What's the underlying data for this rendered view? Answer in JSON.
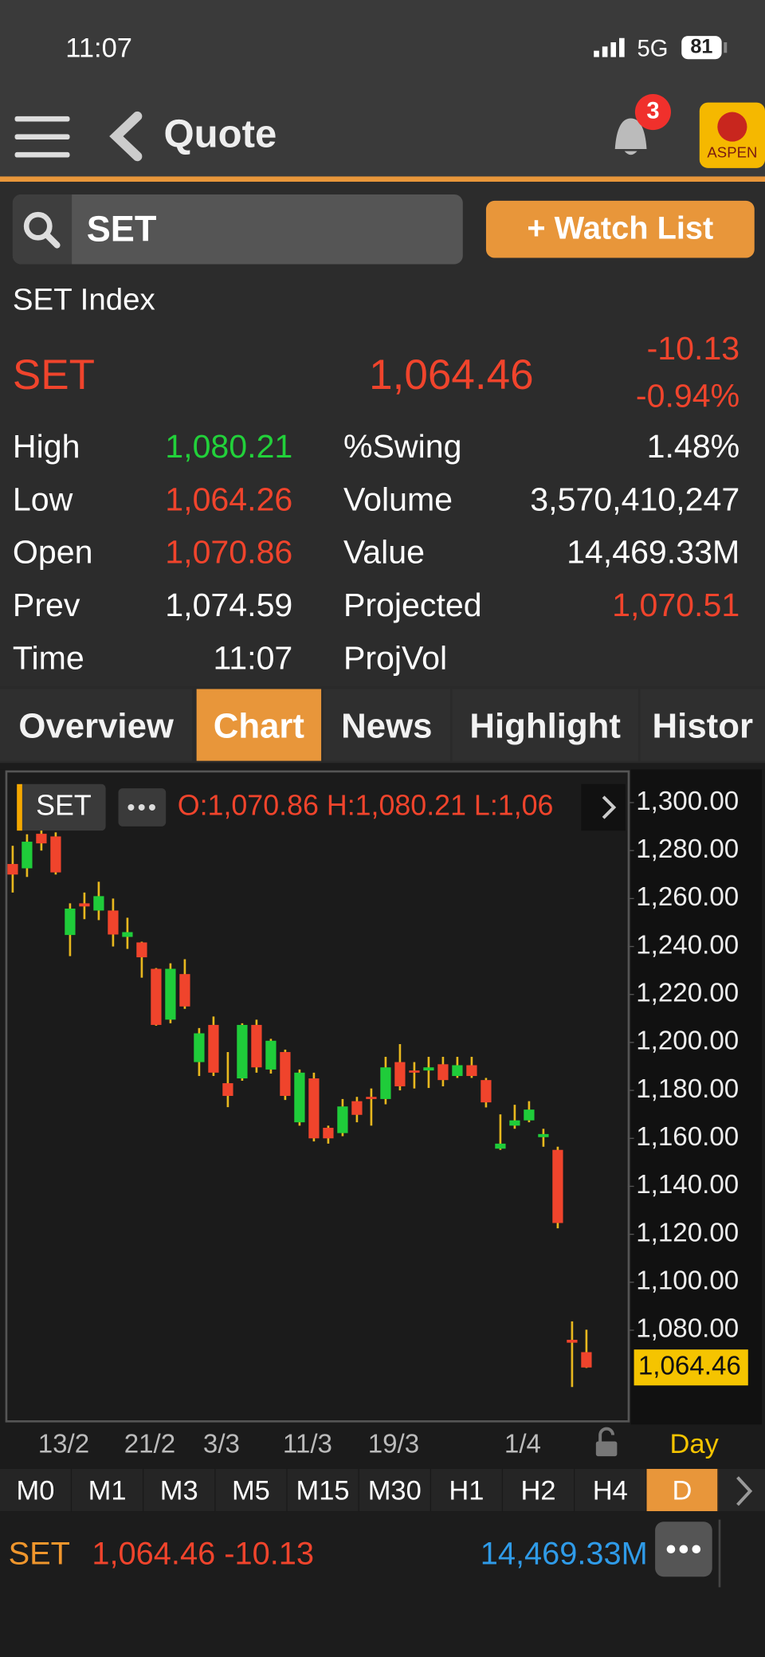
{
  "status_bar": {
    "time": "11:07",
    "network": "5G",
    "battery": "81"
  },
  "header": {
    "title": "Quote",
    "notifications": "3",
    "logo": "ASPEN"
  },
  "search": {
    "query": "SET",
    "watch_list_button": "+ Watch List"
  },
  "quote": {
    "name": "SET Index",
    "symbol": "SET",
    "last": "1,064.46",
    "change": "-10.13",
    "change_pct": "-0.94%",
    "left_stats": [
      {
        "label": "High",
        "value": "1,080.21",
        "color": "#22d13a"
      },
      {
        "label": "Low",
        "value": "1,064.26",
        "color": "#f0442c"
      },
      {
        "label": "Open",
        "value": "1,070.86",
        "color": "#f0442c"
      },
      {
        "label": "Prev",
        "value": "1,074.59",
        "color": "#ffffff"
      },
      {
        "label": "Time",
        "value": "11:07",
        "color": "#ffffff"
      }
    ],
    "right_stats": [
      {
        "label": "%Swing",
        "value": "1.48%",
        "color": "#ffffff"
      },
      {
        "label": "Volume",
        "value": "3,570,410,247",
        "color": "#ffffff"
      },
      {
        "label": "Value",
        "value": "14,469.33M",
        "color": "#ffffff"
      },
      {
        "label": "Projected",
        "value": "1,070.51",
        "color": "#f0442c"
      },
      {
        "label": "ProjVol"
      }
    ]
  },
  "tabs": [
    "Overview",
    "Chart",
    "News",
    "Highlight",
    "Histor"
  ],
  "chart_data": {
    "type": "candlestick",
    "symbol": "SET",
    "ohlc_summary": "O:1,070.86  H:1,080.21  L:1,06",
    "interval": "Day",
    "up_color": "#1fcc3a",
    "down_color": "#f0442c",
    "wick_color": "#e8b81e",
    "categories": [
      null,
      null,
      null,
      null,
      "13/2",
      null,
      null,
      null,
      null,
      null,
      "21/2",
      null,
      null,
      null,
      null,
      "3/3",
      null,
      null,
      null,
      null,
      null,
      "11/3",
      null,
      null,
      null,
      null,
      null,
      "19/3",
      null,
      null,
      null,
      null,
      null,
      null,
      null,
      null,
      "1/4",
      null,
      null,
      null,
      null
    ],
    "open": [
      1274.4,
      1272.6,
      1287,
      1285.9,
      1244.8,
      1258,
      1255,
      1255,
      1244,
      1241.7,
      1230.7,
      1209.5,
      1228.5,
      1191.8,
      1207.3,
      1183,
      1185,
      1207.3,
      1188.7,
      1196,
      1166.7,
      1185,
      1164.4,
      1162.2,
      1175.5,
      1177.3,
      1176.4,
      1191.8,
      1188.3,
      1188.3,
      1190.9,
      1186,
      1190.5,
      1184.3,
      1155.7,
      1165.3,
      1167.5,
      1160.5,
      1155.2,
      1076,
      1070.86
    ],
    "high": [
      1282,
      1286.8,
      1293,
      1287.6,
      1258,
      1262.5,
      1267,
      1260,
      1252,
      1242,
      1231,
      1233,
      1234.7,
      1206,
      1210.8,
      1196,
      1208,
      1209.5,
      1201.5,
      1197,
      1188.7,
      1187.4,
      1165.3,
      1176.4,
      1177.3,
      1180.8,
      1194,
      1199.3,
      1191.8,
      1194,
      1194,
      1194,
      1194,
      1185.2,
      1170,
      1174,
      1175.5,
      1164,
      1156.5,
      1083.7,
      1080.21
    ],
    "low": [
      1262.5,
      1269,
      1280,
      1270,
      1236,
      1251.4,
      1251,
      1240,
      1239,
      1227,
      1207,
      1208,
      1214,
      1186,
      1186,
      1173,
      1184,
      1187.4,
      1187,
      1176,
      1165.3,
      1158.7,
      1157.8,
      1160.9,
      1166.7,
      1165.3,
      1174.2,
      1180,
      1180.8,
      1181,
      1181.7,
      1185.2,
      1185.2,
      1172.9,
      1155.2,
      1164,
      1166.7,
      1156.5,
      1122.5,
      1056.3,
      1064.26
    ],
    "close": [
      1270,
      1283.7,
      1283,
      1270.9,
      1255.8,
      1256.7,
      1261,
      1245,
      1246,
      1235.5,
      1207.3,
      1230.7,
      1215,
      1203.8,
      1187.4,
      1177.7,
      1207.3,
      1189.6,
      1200.7,
      1177.7,
      1187.4,
      1160,
      1160,
      1173.3,
      1169.8,
      1176.4,
      1189.6,
      1181.7,
      1187.4,
      1189.6,
      1184.3,
      1190.5,
      1186,
      1175,
      1157.8,
      1167.5,
      1172,
      1161.8,
      1124.7,
      1074.8,
      1064.46
    ],
    "ylim": [
      1042,
      1313
    ],
    "yticks": [
      {
        "value": 1300,
        "label": "1,300.00"
      },
      {
        "value": 1280,
        "label": "1,280.00"
      },
      {
        "value": 1260,
        "label": "1,260.00"
      },
      {
        "value": 1240,
        "label": "1,240.00"
      },
      {
        "value": 1220,
        "label": "1,220.00"
      },
      {
        "value": 1200,
        "label": "1,200.00"
      },
      {
        "value": 1180,
        "label": "1,180.00"
      },
      {
        "value": 1160,
        "label": "1,160.00"
      },
      {
        "value": 1140,
        "label": "1,140.00"
      },
      {
        "value": 1120,
        "label": "1,120.00"
      },
      {
        "value": 1100,
        "label": "1,100.00"
      },
      {
        "value": 1080,
        "label": "1,080.00"
      }
    ],
    "last_price": {
      "value": 1064.46,
      "label": "1,064.46"
    }
  },
  "timeframes": [
    "M0",
    "M1",
    "M3",
    "M5",
    "M15",
    "M30",
    "H1",
    "H2",
    "H4",
    "D"
  ],
  "footer": {
    "symbol": "SET",
    "price": "1,064.46 -10.13",
    "value": "14,469.33M"
  }
}
